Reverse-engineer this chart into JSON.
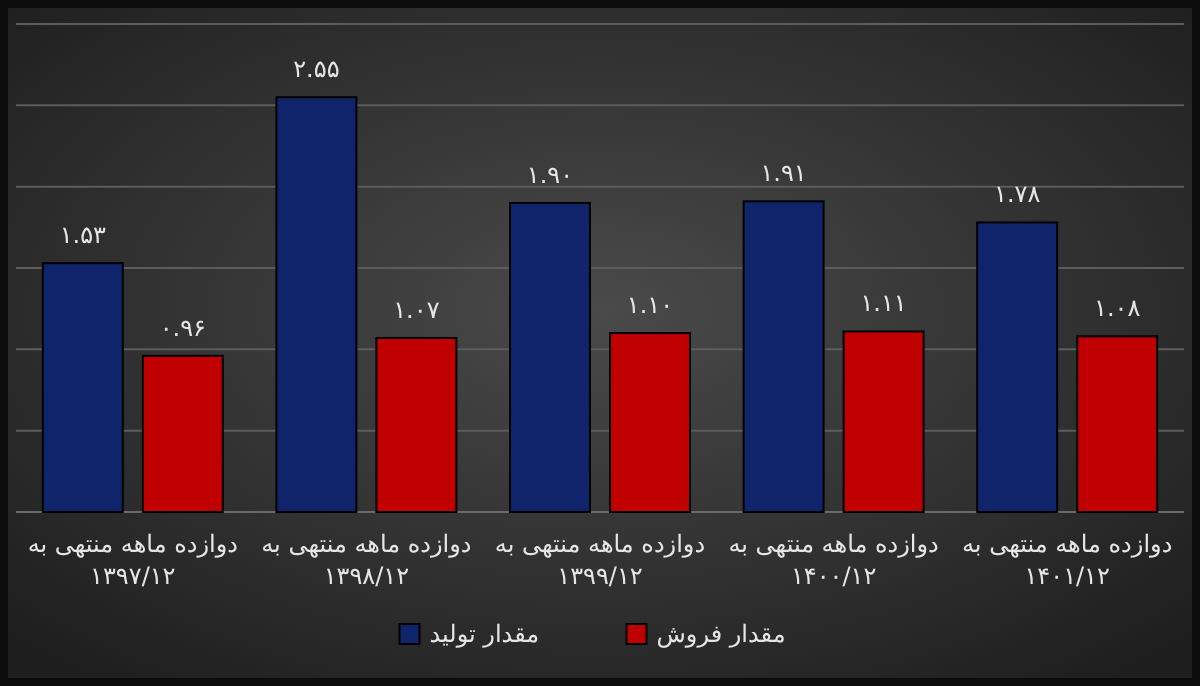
{
  "chart_data": {
    "type": "bar",
    "categories": [
      "دوازده ماهه منتهی به ۱۳۹۷/۱۲",
      "دوازده ماهه منتهی به ۱۳۹۸/۱۲",
      "دوازده ماهه منتهی به ۱۳۹۹/۱۲",
      "دوازده ماهه منتهی به ۱۴۰۰/۱۲",
      "دوازده ماهه منتهی به ۱۴۰۱/۱۲"
    ],
    "series": [
      {
        "name": "مقدار تولید",
        "color": "#0f246b",
        "values": [
          1.53,
          2.55,
          1.9,
          1.91,
          1.78
        ],
        "value_labels": [
          "۱.۵۳",
          "۲.۵۵",
          "۱.۹۰",
          "۱.۹۱",
          "۱.۷۸"
        ]
      },
      {
        "name": "مقدار فروش",
        "color": "#c00000",
        "values": [
          0.96,
          1.07,
          1.1,
          1.11,
          1.08
        ],
        "value_labels": [
          "۰.۹۶",
          "۱.۰۷",
          "۱.۱۰",
          "۱.۱۱",
          "۱.۰۸"
        ]
      }
    ],
    "ylim": [
      0,
      3
    ],
    "yticks": [
      {
        "value": 0,
        "label": null
      },
      {
        "value": 0.5,
        "label": null
      },
      {
        "value": 1,
        "label": null
      },
      {
        "value": 1.5,
        "label": null
      },
      {
        "value": 2,
        "label": null
      },
      {
        "value": 2.5,
        "label": null
      },
      {
        "value": 3,
        "label": null
      }
    ],
    "tick_labels": "x",
    "grid": "y",
    "legend": "bottom"
  }
}
